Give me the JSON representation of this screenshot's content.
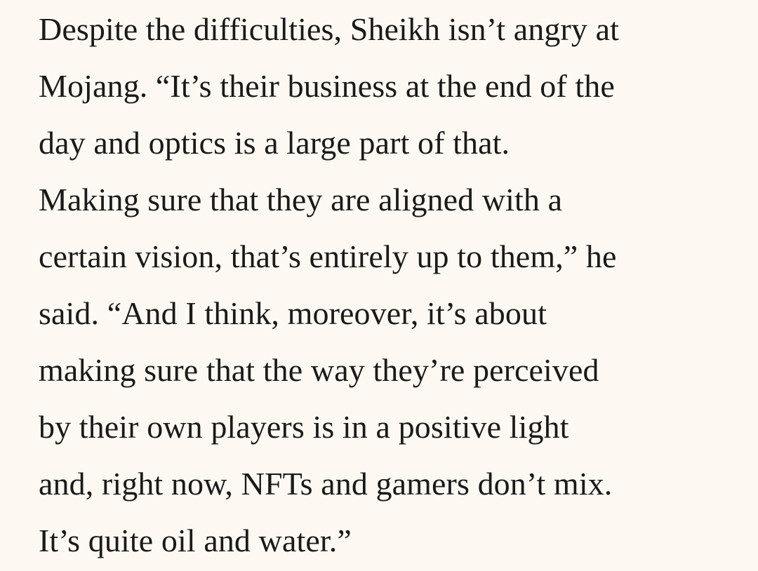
{
  "article": {
    "paragraph_lines": [
      "Despite the difficulties, Sheikh isn’t angry at",
      "Mojang. “It’s their business at the end of the",
      "day and optics is a large part of that.",
      "Making sure that they are aligned with a",
      "certain vision, that’s entirely up to them,” he",
      "said. “And I think, moreover, it’s about",
      "making sure that the way they’re perceived",
      "by their own players is in a positive light",
      "and, right now, NFTs and gamers don’t mix.",
      "It’s quite oil and water.”"
    ]
  }
}
